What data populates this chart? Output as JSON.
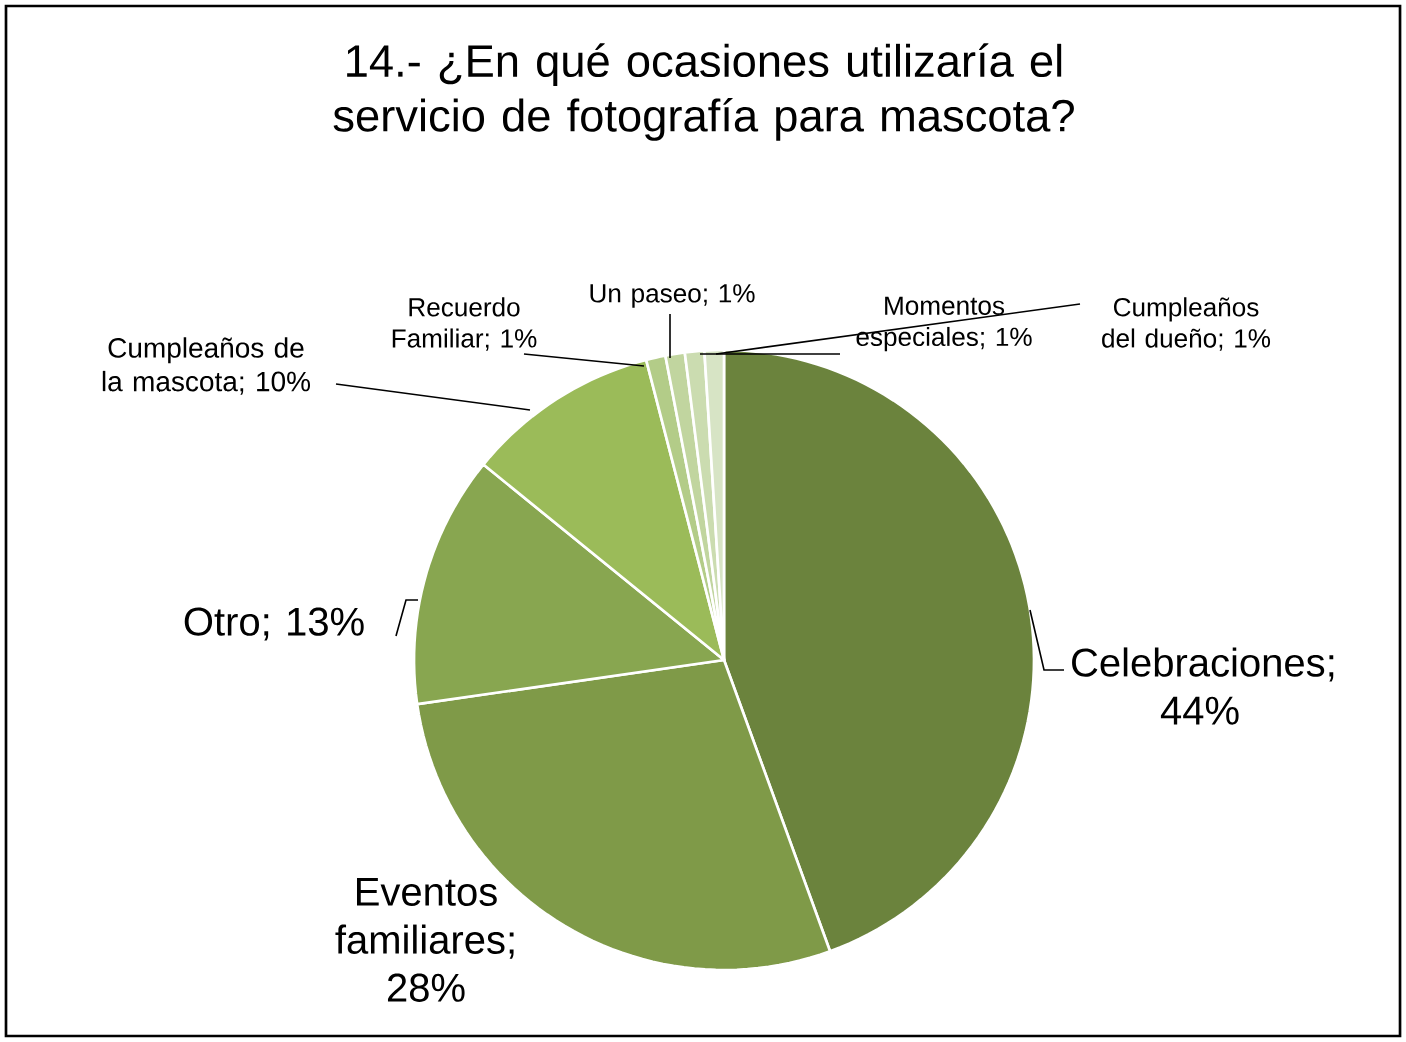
{
  "chart_data": {
    "type": "pie",
    "title": "14.- ¿En qué ocasiones utilizaría el servicio de fotografía para mascota?",
    "categories": [
      "Celebraciones",
      "Eventos familiares",
      "Otro",
      "Cumpleaños de la mascota",
      "Recuerdo Familiar",
      "Un paseo",
      "Momentos especiales",
      "Cumpleaños del dueño"
    ],
    "values": [
      44,
      28,
      13,
      10,
      1,
      1,
      1,
      1
    ],
    "value_labels": [
      "; 44%",
      "; 28%",
      "; 13%",
      "; 10%",
      "; 1%",
      "; 1%",
      "; 1%",
      "; 1%"
    ],
    "colors": [
      "#6b833d",
      "#7f9a48",
      "#88a650",
      "#9bbb59",
      "#b3cc88",
      "#c1d59f",
      "#cbdcb0",
      "#d7e4c5"
    ]
  }
}
